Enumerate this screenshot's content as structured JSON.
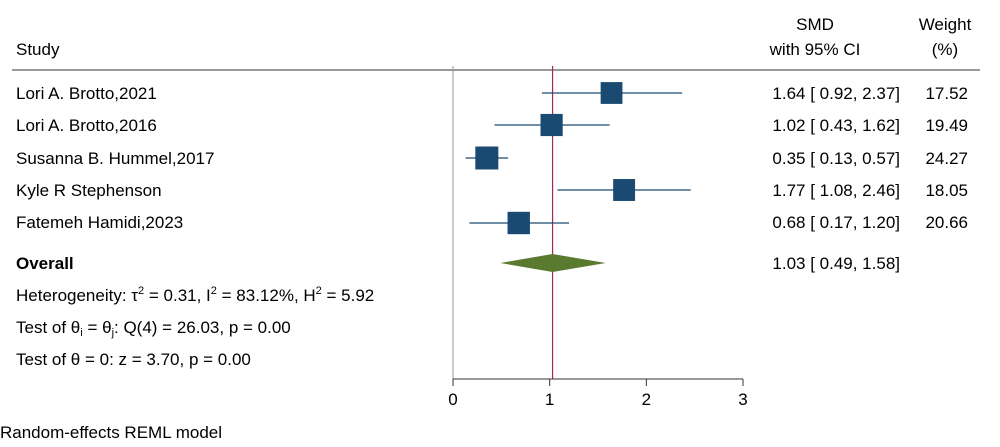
{
  "header": {
    "study_label": "Study",
    "effect_label_1": "SMD",
    "effect_label_2": "with 95% CI",
    "weight_label_1": "Weight",
    "weight_label_2": "(%)"
  },
  "overall_label": "Overall",
  "heterogeneity": {
    "prefix": "Heterogeneity: τ",
    "tau_sup": "2",
    "tau_val": " = 0.31, I",
    "i_sup": "2",
    "i_val": " = 83.12%, H",
    "h_sup": "2",
    "h_val": " = 5.92"
  },
  "test_equal": {
    "prefix": "Test of θ",
    "sub_i": "i",
    "mid": " = θ",
    "sub_j": "j",
    "rest": ": Q(4) = 26.03, p = 0.00"
  },
  "test_zero": "Test of θ = 0: z = 3.70, p = 0.00",
  "footer_note": "Random-effects REML model",
  "colors": {
    "marker": "#1a4a72",
    "diamond": "#5a7a30",
    "ref_line": "#a0285a",
    "axis": "#333333",
    "zero_line": "#999999"
  },
  "chart_data": {
    "type": "forest",
    "xlim": [
      0,
      3
    ],
    "x_ticks": [
      0,
      1,
      2,
      3
    ],
    "studies": [
      {
        "name": "Lori A. Brotto,2021",
        "smd": 1.64,
        "lo": 0.92,
        "hi": 2.37,
        "ci_text": "1.64 [ 0.92,  2.37]",
        "weight": 17.52,
        "weight_text": "17.52"
      },
      {
        "name": "Lori A. Brotto,2016",
        "smd": 1.02,
        "lo": 0.43,
        "hi": 1.62,
        "ci_text": "1.02 [ 0.43,  1.62]",
        "weight": 19.49,
        "weight_text": "19.49"
      },
      {
        "name": "Susanna B. Hummel,2017",
        "smd": 0.35,
        "lo": 0.13,
        "hi": 0.57,
        "ci_text": "0.35 [ 0.13,  0.57]",
        "weight": 24.27,
        "weight_text": "24.27"
      },
      {
        "name": "Kyle R Stephenson",
        "smd": 1.77,
        "lo": 1.08,
        "hi": 2.46,
        "ci_text": "1.77 [ 1.08,  2.46]",
        "weight": 18.05,
        "weight_text": "18.05"
      },
      {
        "name": "Fatemeh Hamidi,2023",
        "smd": 0.68,
        "lo": 0.17,
        "hi": 1.2,
        "ci_text": "0.68 [ 0.17,  1.20]",
        "weight": 20.66,
        "weight_text": "20.66"
      }
    ],
    "overall": {
      "smd": 1.03,
      "lo": 0.49,
      "hi": 1.58,
      "ci_text": "1.03 [ 0.49,  1.58]"
    }
  }
}
